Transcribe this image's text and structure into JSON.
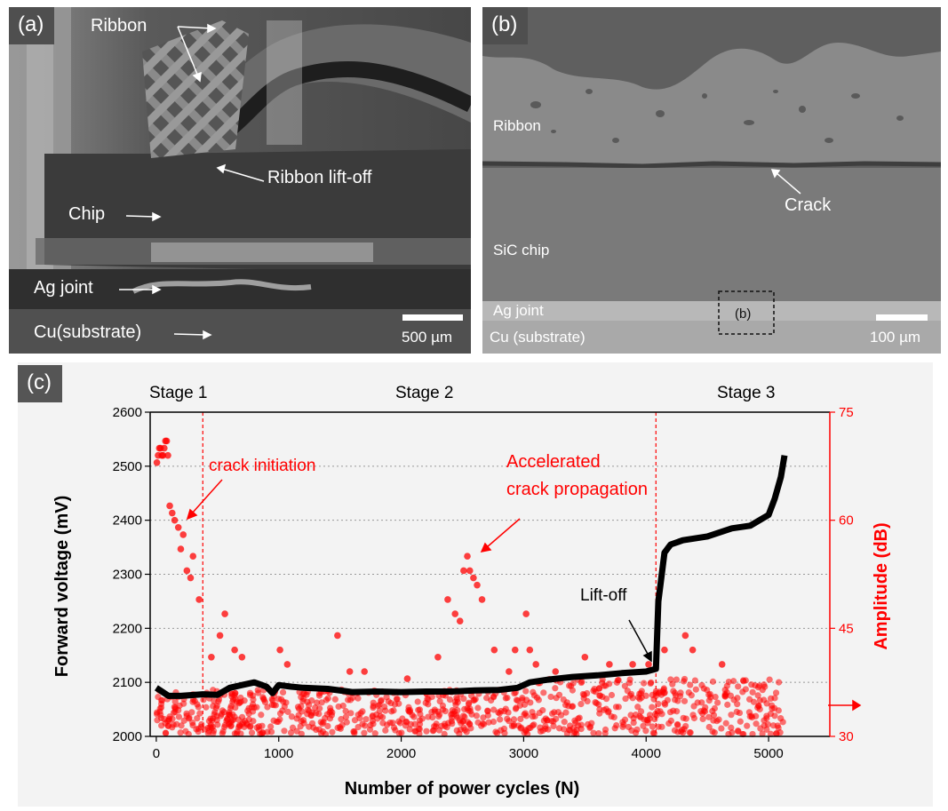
{
  "panel_a": {
    "label": "(a)",
    "annotations": {
      "ribbon": "Ribbon",
      "ribbon_liftoff": "Ribbon lift-off",
      "chip": "Chip",
      "ag_joint": "Ag joint",
      "cu_substrate": "Cu(substrate)"
    },
    "scalebar": "500 µm"
  },
  "panel_b": {
    "label": "(b)",
    "annotations": {
      "ribbon": "Ribbon",
      "crack": "Crack",
      "sic_chip": "SiC chip",
      "ag_joint": "Ag joint",
      "cu_substrate": "Cu (substrate)",
      "inset_box": "(b)"
    },
    "scalebar": "100 µm"
  },
  "panel_c": {
    "label": "(c)",
    "stages": [
      "Stage 1",
      "Stage 2",
      "Stage 3"
    ],
    "annotations": {
      "crack_initiation": "crack initiation",
      "accelerated_line1": "Accelerated",
      "accelerated_line2": "crack propagation",
      "liftoff": "Lift-off"
    },
    "colors": {
      "voltage": "#000000",
      "amplitude": "#ff0000"
    }
  },
  "chart_data": {
    "type": "scatter",
    "title": "",
    "xlabel": "Number of power cycles (N)",
    "ylabel": "Forward voltage (mV)",
    "y2label": "Amplitude (dB)",
    "xlim": [
      -50,
      5500
    ],
    "ylim": [
      2000,
      2600
    ],
    "y2lim": [
      30,
      75
    ],
    "xticks": [
      0,
      1000,
      2000,
      3000,
      4000,
      5000
    ],
    "yticks": [
      2000,
      2100,
      2200,
      2300,
      2400,
      2500,
      2600
    ],
    "y2ticks": [
      30,
      45,
      60,
      75
    ],
    "stage_boundaries": [
      380,
      4080
    ],
    "series": [
      {
        "name": "Forward voltage",
        "axis": "left",
        "x": [
          0,
          100,
          200,
          380,
          500,
          600,
          700,
          800,
          900,
          950,
          1000,
          1100,
          1200,
          1400,
          1600,
          1800,
          2000,
          2200,
          2400,
          2600,
          2800,
          2950,
          3050,
          3200,
          3400,
          3600,
          3800,
          4000,
          4080,
          4100,
          4150,
          4200,
          4300,
          4500,
          4700,
          4850,
          5000,
          5050,
          5100,
          5130
        ],
        "values": [
          2090,
          2075,
          2075,
          2078,
          2077,
          2090,
          2095,
          2100,
          2092,
          2080,
          2095,
          2092,
          2090,
          2088,
          2082,
          2083,
          2082,
          2083,
          2083,
          2085,
          2086,
          2090,
          2100,
          2105,
          2110,
          2113,
          2117,
          2120,
          2125,
          2250,
          2340,
          2355,
          2363,
          2370,
          2385,
          2390,
          2410,
          2440,
          2480,
          2520
        ]
      },
      {
        "name": "Amplitude",
        "axis": "right",
        "x": [
          5,
          15,
          25,
          35,
          45,
          55,
          65,
          75,
          85,
          95,
          110,
          130,
          150,
          180,
          200,
          220,
          250,
          280,
          300,
          350,
          450,
          520,
          560,
          640,
          700,
          1010,
          1070,
          1480,
          1580,
          1700,
          2050,
          2300,
          2380,
          2440,
          2480,
          2510,
          2540,
          2560,
          2590,
          2620,
          2660,
          2760,
          2880,
          2930,
          3020,
          3050,
          3100,
          3260,
          3500,
          3700,
          3890,
          4020,
          4150,
          4320,
          4380,
          4620
        ],
        "values": [
          68,
          69,
          70,
          70,
          69,
          69,
          70,
          71,
          71,
          69,
          62,
          61,
          60,
          59,
          56,
          58,
          53,
          52,
          55,
          49,
          41,
          44,
          47,
          42,
          41,
          42,
          40,
          44,
          39,
          39,
          38,
          41,
          49,
          47,
          46,
          53,
          55,
          53,
          52,
          51,
          49,
          42,
          39,
          42,
          47,
          42,
          40,
          39,
          41,
          40,
          40,
          40,
          42,
          44,
          42,
          40
        ]
      }
    ]
  }
}
